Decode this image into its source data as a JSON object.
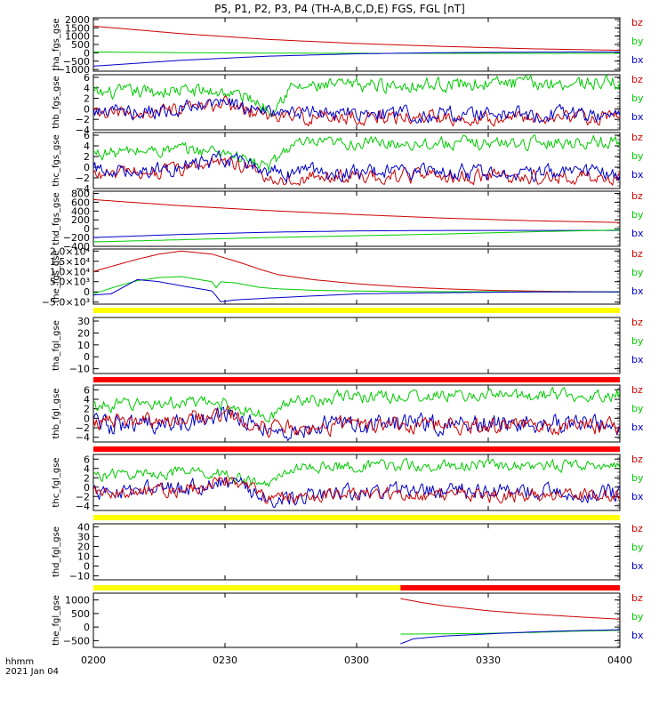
{
  "title": "P5, P1, P2, P3, P4 (TH-A,B,C,D,E) FGS, FGL [nT]",
  "time_axis": {
    "ticks": [
      "0200",
      "0230",
      "0300",
      "0330",
      "0400"
    ],
    "range": [
      "02:00",
      "04:00"
    ],
    "corner_label_1": "hhmm",
    "corner_label_2": "2021 Jan 04"
  },
  "chart_data": [
    {
      "type": "line",
      "ylabel": "tha_fgs_gse",
      "ylim": [
        -1100,
        2100
      ],
      "yticks": [
        "2000",
        "1500",
        "1000",
        "500",
        "0",
        "−500",
        "−1000"
      ],
      "legend": [
        "bz",
        "by",
        "bx"
      ],
      "series": [
        {
          "name": "bz",
          "color": "#cc0000",
          "x": [
            0,
            20,
            40,
            60,
            80,
            100,
            120
          ],
          "y": [
            1600,
            1150,
            800,
            560,
            380,
            240,
            150
          ]
        },
        {
          "name": "by",
          "color": "#00cc00",
          "x": [
            0,
            20,
            40,
            60,
            80,
            100,
            120
          ],
          "y": [
            50,
            10,
            -20,
            -30,
            -35,
            -35,
            -30
          ]
        },
        {
          "name": "bx",
          "color": "#0000cc",
          "x": [
            0,
            20,
            40,
            60,
            80,
            100,
            120
          ],
          "y": [
            -800,
            -450,
            -200,
            -60,
            10,
            40,
            50
          ]
        }
      ]
    },
    {
      "type": "line",
      "ylabel": "thb_fgs_gse",
      "ylim": [
        -4,
        6.5
      ],
      "yticks": [
        "6",
        "4",
        "2",
        "0",
        "−2",
        "−4"
      ],
      "legend": [
        "bz",
        "by",
        "bx"
      ],
      "series": [
        {
          "name": "by",
          "color": "#00cc00",
          "x": [
            0,
            10,
            20,
            30,
            36,
            40,
            45,
            60,
            90,
            120
          ],
          "y": [
            2.8,
            3.2,
            3.5,
            3.2,
            2.0,
            -0.2,
            4.0,
            4.5,
            4.8,
            5.0
          ],
          "noise": 0.9
        },
        {
          "name": "bz",
          "color": "#cc0000",
          "x": [
            0,
            20,
            30,
            40,
            60,
            90,
            120
          ],
          "y": [
            -1.2,
            -0.5,
            1.0,
            -1.5,
            -1.6,
            -1.6,
            -1.7
          ],
          "noise": 0.9
        },
        {
          "name": "bx",
          "color": "#0000cc",
          "x": [
            0,
            20,
            30,
            40,
            60,
            90,
            120
          ],
          "y": [
            -0.5,
            -0.3,
            1.2,
            -0.8,
            -1.0,
            -1.0,
            -1.2
          ],
          "noise": 1.0
        }
      ]
    },
    {
      "type": "line",
      "ylabel": "thc_fgs_gse",
      "ylim": [
        -4,
        6.5
      ],
      "yticks": [
        "6",
        "4",
        "2",
        "0",
        "−2",
        "−4"
      ],
      "legend": [
        "bz",
        "by",
        "bx"
      ],
      "series": [
        {
          "name": "by",
          "color": "#00cc00",
          "x": [
            0,
            10,
            20,
            30,
            36,
            40,
            45,
            60,
            90,
            120
          ],
          "y": [
            2.5,
            3.0,
            3.3,
            3.0,
            1.0,
            0.0,
            4.2,
            4.5,
            4.5,
            4.8
          ],
          "noise": 0.8
        },
        {
          "name": "bz",
          "color": "#cc0000",
          "x": [
            0,
            20,
            30,
            40,
            60,
            90,
            120
          ],
          "y": [
            -1.5,
            -0.5,
            1.5,
            -2.0,
            -1.8,
            -1.8,
            -1.9
          ],
          "noise": 0.9
        },
        {
          "name": "bx",
          "color": "#0000cc",
          "x": [
            0,
            20,
            30,
            40,
            60,
            90,
            120
          ],
          "y": [
            -0.5,
            -0.3,
            1.5,
            -1.0,
            -1.0,
            -1.0,
            -1.1
          ],
          "noise": 1.0
        }
      ]
    },
    {
      "type": "line",
      "ylabel": "thd_fgs_gse",
      "ylim": [
        -400,
        850
      ],
      "yticks": [
        "800",
        "600",
        "400",
        "200",
        "0",
        "−200",
        "−400"
      ],
      "legend": [
        "bz",
        "by",
        "bx"
      ],
      "series": [
        {
          "name": "bz",
          "color": "#cc0000",
          "x": [
            0,
            20,
            40,
            60,
            80,
            100,
            120
          ],
          "y": [
            660,
            520,
            410,
            320,
            240,
            180,
            140
          ]
        },
        {
          "name": "bx",
          "color": "#0000cc",
          "x": [
            0,
            20,
            40,
            60,
            80,
            100,
            120
          ],
          "y": [
            -200,
            -130,
            -80,
            -50,
            -40,
            -40,
            -40
          ]
        },
        {
          "name": "by",
          "color": "#00cc00",
          "x": [
            0,
            20,
            40,
            60,
            80,
            100,
            120
          ],
          "y": [
            -300,
            -250,
            -200,
            -160,
            -120,
            -70,
            -30
          ]
        }
      ]
    },
    {
      "type": "line",
      "ylabel": "the_fgs_gse",
      "ylim": [
        -6000,
        21000
      ],
      "yticks": [
        "2.0×10⁴",
        "1.5×10⁴",
        "1.0×10⁴",
        "5.0×10³",
        "0",
        "−5.0×10³"
      ],
      "legend": [
        "bz",
        "by",
        "bx"
      ],
      "series": [
        {
          "name": "bz",
          "color": "#cc0000",
          "x": [
            0,
            5,
            10,
            15,
            20,
            27,
            34,
            38,
            42,
            50,
            60,
            70,
            80,
            90,
            100,
            110,
            120
          ],
          "y": [
            10000,
            13000,
            16000,
            18500,
            20000,
            18500,
            14000,
            11000,
            8500,
            6000,
            4000,
            2500,
            1500,
            800,
            400,
            150,
            50
          ]
        },
        {
          "name": "by",
          "color": "#00cc00",
          "x": [
            0,
            5,
            10,
            15,
            20,
            27,
            28,
            28.5,
            32,
            38,
            42,
            50,
            60,
            70,
            80,
            90,
            100,
            110,
            120
          ],
          "y": [
            -1000,
            2500,
            5500,
            7000,
            7500,
            5000,
            2000,
            5000,
            4500,
            2200,
            1500,
            800,
            400,
            200,
            100,
            100,
            50,
            50,
            0
          ]
        },
        {
          "name": "bx",
          "color": "#0000cc",
          "x": [
            0,
            4,
            10,
            15,
            20,
            27,
            28,
            28.5,
            32,
            40,
            50,
            60,
            70,
            80,
            90,
            100,
            120
          ],
          "y": [
            -1500,
            -1000,
            6000,
            5000,
            3000,
            500,
            -2000,
            -5000,
            -4000,
            -3000,
            -2000,
            -1000,
            -600,
            -400,
            -200,
            -50,
            0
          ]
        }
      ]
    },
    {
      "type": "line",
      "ylabel": "tha_fgl_gse",
      "ylim": [
        -14,
        33
      ],
      "yticks": [
        "30",
        "20",
        "10",
        "0",
        "−10"
      ],
      "legend": [
        "bz",
        "by",
        "bx"
      ],
      "series": []
    },
    {
      "type": "line",
      "ylabel": "thb_fgl_gse",
      "ylim": [
        -5,
        7
      ],
      "yticks": [
        "6",
        "4",
        "2",
        "0",
        "−2",
        "−4"
      ],
      "legend": [
        "bz",
        "by",
        "bx"
      ],
      "series": [
        {
          "name": "by",
          "color": "#00cc00",
          "x": [
            0,
            10,
            20,
            30,
            36,
            40,
            45,
            60,
            90,
            120
          ],
          "y": [
            2.5,
            3.0,
            3.3,
            3.0,
            1.5,
            -0.5,
            4.0,
            4.5,
            4.8,
            5.0
          ],
          "noise": 0.9
        },
        {
          "name": "bx",
          "color": "#0000cc",
          "x": [
            0,
            20,
            30,
            40,
            60,
            90,
            120
          ],
          "y": [
            -1.5,
            -1.2,
            1.0,
            -2.5,
            -1.3,
            -1.0,
            -1.3
          ],
          "noise": 1.4
        },
        {
          "name": "bz",
          "color": "#cc0000",
          "x": [
            0,
            20,
            30,
            40,
            60,
            90,
            120
          ],
          "y": [
            -1.0,
            -0.5,
            1.2,
            -2.0,
            -1.5,
            -1.5,
            -1.6
          ],
          "noise": 1.1
        }
      ]
    },
    {
      "type": "line",
      "ylabel": "thc_fgl_gse",
      "ylim": [
        -5,
        7
      ],
      "yticks": [
        "6",
        "4",
        "2",
        "0",
        "−2",
        "−4"
      ],
      "legend": [
        "bz",
        "by",
        "bx"
      ],
      "series": [
        {
          "name": "by",
          "color": "#00cc00",
          "x": [
            0,
            10,
            20,
            30,
            36,
            40,
            45,
            60,
            90,
            120
          ],
          "y": [
            2.5,
            2.8,
            3.2,
            3.0,
            1.0,
            0.5,
            4.2,
            4.5,
            4.6,
            4.8
          ],
          "noise": 0.8
        },
        {
          "name": "bx",
          "color": "#0000cc",
          "x": [
            0,
            20,
            30,
            40,
            60,
            90,
            120
          ],
          "y": [
            -1.0,
            -0.6,
            1.5,
            -2.5,
            -1.0,
            -1.0,
            -1.2
          ],
          "noise": 1.2
        },
        {
          "name": "bz",
          "color": "#cc0000",
          "x": [
            0,
            20,
            30,
            40,
            60,
            90,
            120
          ],
          "y": [
            -1.5,
            -0.5,
            1.5,
            -2.3,
            -1.8,
            -1.8,
            -1.9
          ],
          "noise": 1.0
        }
      ]
    },
    {
      "type": "line",
      "ylabel": "thd_fgl_gse",
      "ylim": [
        -14,
        43
      ],
      "yticks": [
        "40",
        "30",
        "20",
        "10",
        "0",
        "−10"
      ],
      "legend": [
        "bz",
        "by",
        "bx"
      ],
      "series": []
    },
    {
      "type": "line",
      "ylabel": "the_fgl_gse",
      "ylim": [
        -750,
        1250
      ],
      "yticks": [
        "1000",
        "500",
        "0",
        "−500"
      ],
      "legend": [
        "bz",
        "by",
        "bx"
      ],
      "series": [
        {
          "name": "bz",
          "color": "#cc0000",
          "x": [
            70,
            75,
            80,
            90,
            100,
            110,
            120
          ],
          "y": [
            1050,
            900,
            780,
            600,
            480,
            380,
            290
          ]
        },
        {
          "name": "by",
          "color": "#00cc00",
          "x": [
            70,
            80,
            90,
            100,
            110,
            120
          ],
          "y": [
            -260,
            -250,
            -230,
            -200,
            -150,
            -120
          ]
        },
        {
          "name": "bx",
          "color": "#0000cc",
          "x": [
            70,
            73,
            80,
            90,
            100,
            110,
            120
          ],
          "y": [
            -620,
            -430,
            -330,
            -250,
            -180,
            -130,
            -100
          ]
        }
      ]
    }
  ],
  "mode_bars": [
    {
      "after_panel": 4,
      "segments": [
        {
          "from": 0,
          "to": 120,
          "color": "#ffff00"
        }
      ]
    },
    {
      "after_panel": 5,
      "segments": [
        {
          "from": 0,
          "to": 120,
          "color": "#ff0000"
        }
      ]
    },
    {
      "after_panel": 6,
      "segments": [
        {
          "from": 0,
          "to": 120,
          "color": "#ff0000"
        }
      ]
    },
    {
      "after_panel": 7,
      "segments": [
        {
          "from": 0,
          "to": 120,
          "color": "#ffff00"
        }
      ]
    },
    {
      "after_panel": 8,
      "segments": [
        {
          "from": 0,
          "to": 70,
          "color": "#ffff00"
        },
        {
          "from": 70,
          "to": 120,
          "color": "#ff0000"
        }
      ]
    }
  ]
}
